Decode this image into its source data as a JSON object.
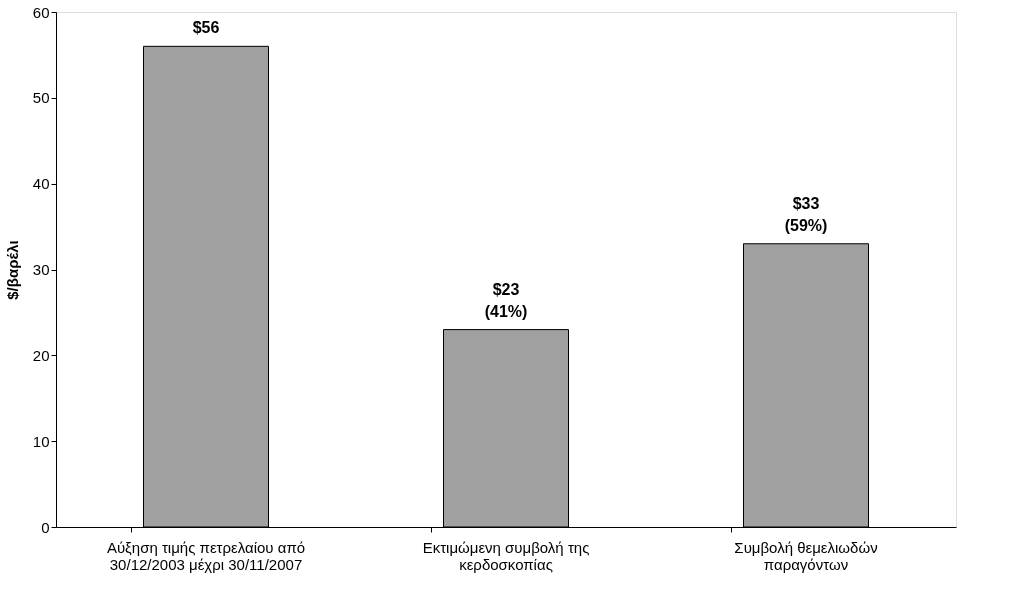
{
  "chart_data": {
    "type": "bar",
    "ylabel": "$/βαρέλι",
    "categories": [
      "Αύξηση τιμής πετρελαίου από\n30/12/2003 μέχρι 30/11/2007",
      "Εκτιμώμενη συμβολή της\nκερδοσκοπίας",
      "Συμβολή θεμελιωδών\nπαραγόντων"
    ],
    "values": [
      56,
      23,
      33
    ],
    "value_labels": [
      "$56",
      "$23\n(41%)",
      "$33\n(59%)"
    ],
    "color": "#a0a0a0",
    "ylim": [
      0,
      60
    ],
    "yticks": [
      0,
      10,
      20,
      30,
      40,
      50,
      60
    ],
    "grid": false
  }
}
